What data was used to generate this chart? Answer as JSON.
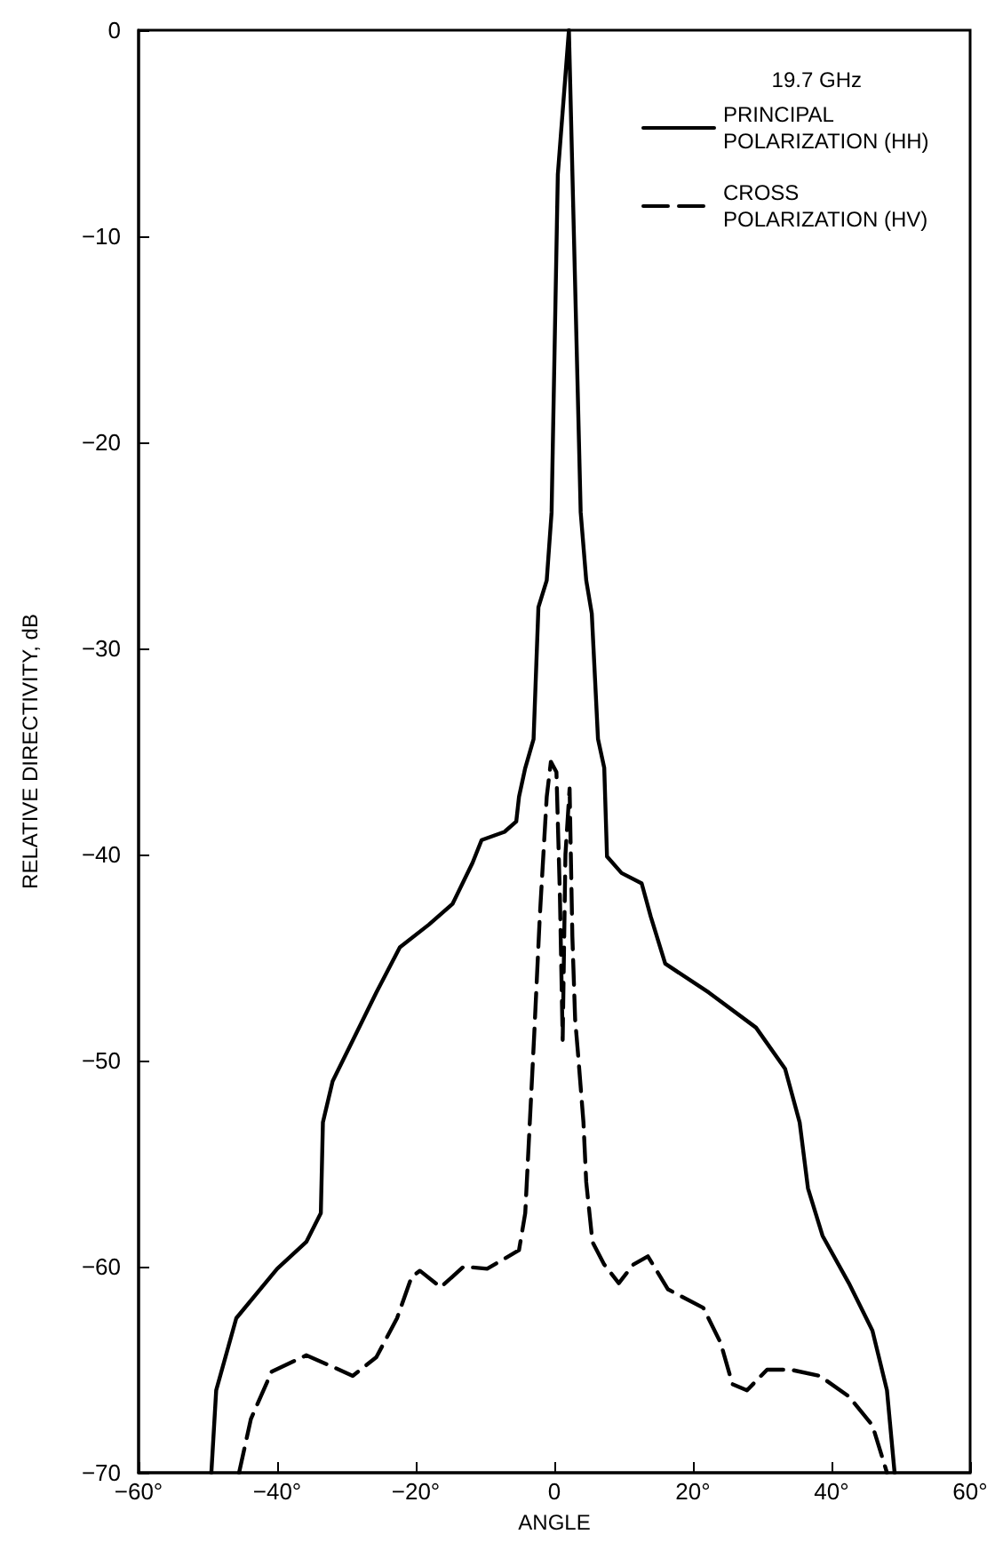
{
  "chart_data": {
    "type": "line",
    "xlabel": "ANGLE",
    "ylabel": "RELATIVE DIRECTIVITY, dB",
    "legend_title": "19.7 GHz",
    "legend": "top right",
    "grid": false,
    "marker": "none",
    "xlim": [
      -60,
      60
    ],
    "ylim": [
      -70,
      0
    ],
    "xticks": [
      {
        "value": -60,
        "label": "−60°"
      },
      {
        "value": -40,
        "label": "−40°"
      },
      {
        "value": -20,
        "label": "−20°"
      },
      0,
      {
        "value": 20,
        "label": "20°"
      },
      {
        "value": 40,
        "label": "40°"
      },
      {
        "value": 60,
        "label": "60°"
      }
    ],
    "yticks": [
      {
        "value": -70,
        "label": "−70"
      },
      {
        "value": -60,
        "label": "−60"
      },
      {
        "value": -50,
        "label": "−50"
      },
      {
        "value": -40,
        "label": "−40"
      },
      {
        "value": -30,
        "label": "−30"
      },
      {
        "value": -20,
        "label": "−20"
      },
      {
        "value": -10,
        "label": "−10"
      },
      0
    ],
    "series": [
      {
        "name": "PRINCIPAL POLARIZATION (HH)",
        "color": "#000000",
        "line_style": "solid",
        "x": [
          -49.5,
          -48.8,
          -45.9,
          -40,
          -35.8,
          -33.7,
          -33.4,
          -32,
          -29.5,
          -25.7,
          -22.3,
          -18.1,
          -14.7,
          -11.8,
          -10.5,
          -7.2,
          -5.5,
          -5.1,
          -4.2,
          -3,
          -2.3,
          -1.1,
          -0.4,
          0.5,
          2.1,
          3.8,
          4.6,
          5.4,
          6.3,
          7.2,
          7.6,
          9.7,
          12.6,
          13.9,
          16,
          22.3,
          29.1,
          33.3,
          35.4,
          36.6,
          38.7,
          42.5,
          45.9,
          48,
          49.1
        ],
        "values": [
          -70,
          -66,
          -62.5,
          -60.1,
          -58.8,
          -57.4,
          -53,
          -51,
          -49.3,
          -46.7,
          -44.5,
          -43.4,
          -42.4,
          -40.4,
          -39.3,
          -38.9,
          -38.4,
          -37.2,
          -35.8,
          -34.4,
          -28,
          -26.7,
          -23.4,
          -7,
          0,
          -23.4,
          -26.7,
          -28.3,
          -34.4,
          -35.8,
          -40.1,
          -40.9,
          -41.4,
          -43,
          -45.3,
          -46.7,
          -48.4,
          -50.4,
          -53,
          -56.2,
          -58.5,
          -60.8,
          -63.1,
          -66,
          -70
        ]
      },
      {
        "name": "CROSS POLARIZATION (HV)",
        "color": "#000000",
        "line_style": "dashed",
        "x": [
          -45.5,
          -43.8,
          -40.8,
          -35.8,
          -32.4,
          -29.1,
          -25.7,
          -22.7,
          -20.6,
          -19.4,
          -16.4,
          -13.1,
          -9.7,
          -5.1,
          -4.2,
          -2.9,
          -2.1,
          -1.1,
          -0.5,
          0.3,
          0.8,
          1.2,
          1.6,
          2.2,
          2.6,
          3,
          3.4,
          4.2,
          4.6,
          5.5,
          7.2,
          9.3,
          11.4,
          13.5,
          16.4,
          21.5,
          24,
          25.7,
          27.8,
          30.7,
          34.1,
          38.3,
          42.5,
          45.9,
          48
        ],
        "values": [
          -70,
          -67.4,
          -65.1,
          -64.3,
          -64.8,
          -65.3,
          -64.4,
          -62.5,
          -60.5,
          -60.2,
          -61,
          -60,
          -60.1,
          -59.2,
          -57.4,
          -48.7,
          -43,
          -37.2,
          -35.5,
          -36,
          -42,
          -49,
          -40,
          -36.8,
          -44,
          -48,
          -49.6,
          -53,
          -55.9,
          -58.8,
          -59.9,
          -60.8,
          -59.9,
          -59.5,
          -61.1,
          -62,
          -63.7,
          -65.7,
          -66,
          -65,
          -65,
          -65.3,
          -66.3,
          -67.7,
          -70
        ]
      }
    ]
  }
}
